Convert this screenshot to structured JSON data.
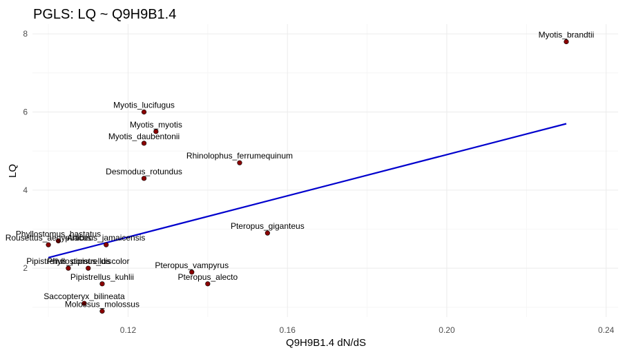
{
  "chart_data": {
    "type": "scatter",
    "title": "PGLS: LQ ~ Q9H9B1.4",
    "xlabel": "Q9H9B1.4 dN/dS",
    "ylabel": "LQ",
    "xlim": [
      0.096,
      0.243
    ],
    "ylim": [
      0.75,
      8.25
    ],
    "x_ticks": [
      0.12,
      0.16,
      0.2,
      0.24
    ],
    "x_tick_labels": [
      "0.12",
      "0.16",
      "0.20",
      "0.24"
    ],
    "x_minor_ticks": [
      0.1,
      0.14,
      0.18,
      0.22
    ],
    "y_ticks": [
      2,
      4,
      6,
      8
    ],
    "y_tick_labels": [
      "2",
      "4",
      "6",
      "8"
    ],
    "y_minor_ticks": [
      1,
      3,
      5,
      7
    ],
    "grid": true,
    "points": [
      {
        "label": "Myotis_brandtii",
        "x": 0.23,
        "y": 7.8
      },
      {
        "label": "Myotis_lucifugus",
        "x": 0.124,
        "y": 6.0
      },
      {
        "label": "Myotis_myotis",
        "x": 0.127,
        "y": 5.5
      },
      {
        "label": "Myotis_daubentonii",
        "x": 0.124,
        "y": 5.2
      },
      {
        "label": "Rhinolophus_ferrumequinum",
        "x": 0.148,
        "y": 4.7
      },
      {
        "label": "Desmodus_rotundus",
        "x": 0.124,
        "y": 4.3
      },
      {
        "label": "Pteropus_giganteus",
        "x": 0.155,
        "y": 2.9
      },
      {
        "label": "Phyllostomus_hastatus",
        "x": 0.1025,
        "y": 2.7
      },
      {
        "label": "Artibeus_jamaicensis",
        "x": 0.1145,
        "y": 2.6
      },
      {
        "label": "Rousettus_aegyptiacus",
        "x": 0.1,
        "y": 2.6
      },
      {
        "label": "Pipistrellus_pipistrellus",
        "x": 0.105,
        "y": 2.0
      },
      {
        "label": "Phyllostomus_discolor",
        "x": 0.11,
        "y": 2.0
      },
      {
        "label": "Pteropus_vampyrus",
        "x": 0.136,
        "y": 1.9
      },
      {
        "label": "Pipistrellus_kuhlii",
        "x": 0.1135,
        "y": 1.6
      },
      {
        "label": "Pteropus_alecto",
        "x": 0.14,
        "y": 1.6
      },
      {
        "label": "Saccopteryx_bilineata",
        "x": 0.109,
        "y": 1.1
      },
      {
        "label": "Molossus_molossus",
        "x": 0.1135,
        "y": 0.9
      }
    ],
    "fit_line": {
      "x": [
        0.1,
        0.23
      ],
      "y": [
        2.27,
        5.7
      ]
    },
    "colors": {
      "point_fill": "#8b0000",
      "point_stroke": "#000000",
      "fit_line": "#0000cd",
      "grid": "#ebebeb",
      "background": "#ffffff"
    }
  }
}
